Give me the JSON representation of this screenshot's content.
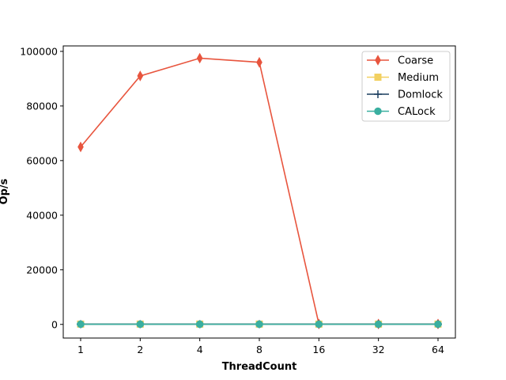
{
  "chart_data": {
    "type": "line",
    "title": "",
    "xlabel": "ThreadCount",
    "ylabel": "Op/s",
    "x": [
      1,
      2,
      4,
      8,
      16,
      32,
      64
    ],
    "x_tick_labels": [
      "1",
      "2",
      "4",
      "8",
      "16",
      "32",
      "64"
    ],
    "x_scale": "log2",
    "ylim": [
      -5000,
      102000
    ],
    "y_ticks": [
      0,
      20000,
      40000,
      60000,
      80000,
      100000
    ],
    "y_tick_labels": [
      "0",
      "20000",
      "40000",
      "60000",
      "80000",
      "100000"
    ],
    "grid": false,
    "legend_position": "top-right",
    "series": [
      {
        "name": "Coarse",
        "color": "#e8553e",
        "marker": "diamond",
        "values": [
          65000,
          91000,
          97500,
          96000,
          150,
          150,
          150
        ]
      },
      {
        "name": "Medium",
        "color": "#f2d060",
        "marker": "square",
        "values": [
          100,
          100,
          100,
          100,
          100,
          100,
          100
        ]
      },
      {
        "name": "Domlock",
        "color": "#1a3d5f",
        "marker": "plus",
        "values": [
          80,
          80,
          80,
          80,
          80,
          80,
          80
        ]
      },
      {
        "name": "CALock",
        "color": "#3aafa0",
        "marker": "circle",
        "values": [
          60,
          60,
          60,
          60,
          60,
          60,
          60
        ]
      }
    ]
  }
}
